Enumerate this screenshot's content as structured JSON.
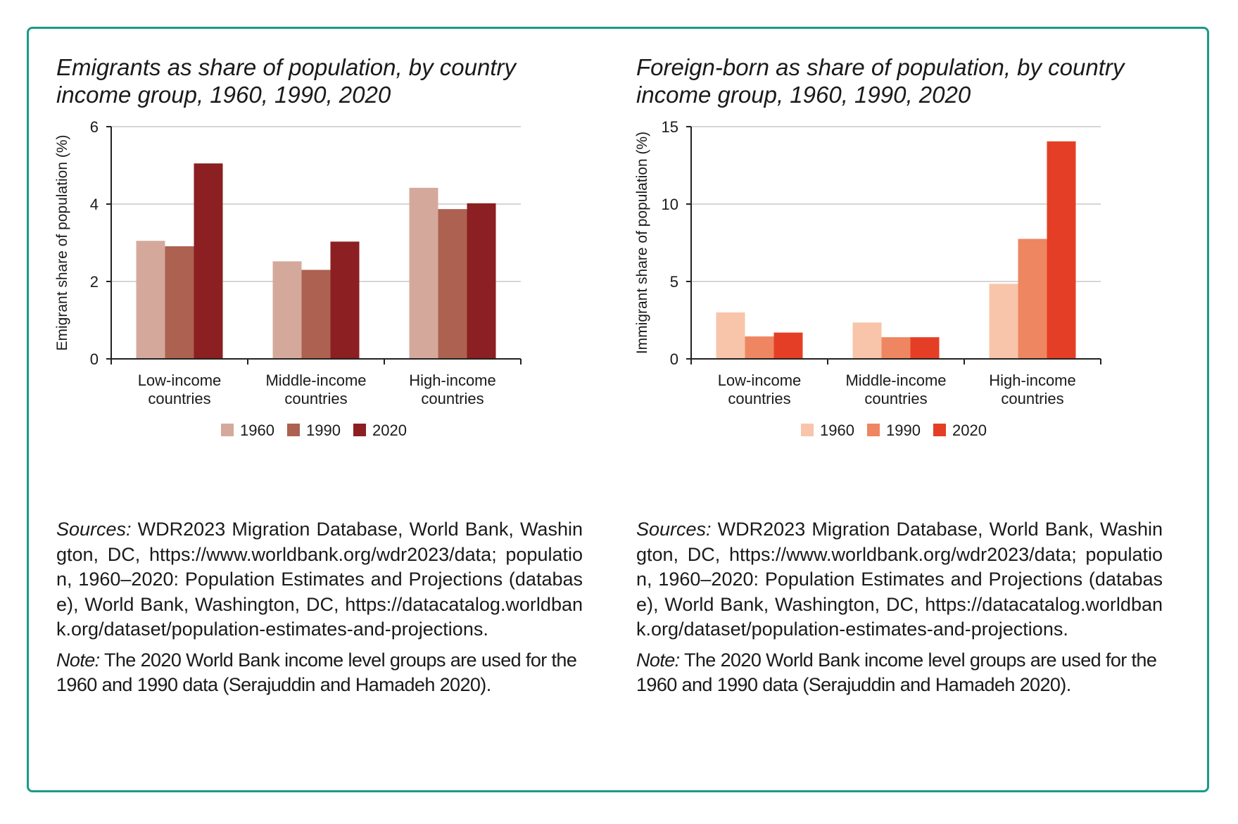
{
  "charts": [
    {
      "title": "Emigrants as share of population, by country income group, 1960, 1990, 2020",
      "sources_label": "Sources:",
      "sources_text": "WDR2023 Migration Database, World Bank, Washington, DC, https://www.worldbank.org/wdr2023/data; population, 1960–2020: Population Estimates and Projections (database), World Bank, Washington, DC, https://datacatalog.worldbank.org/dataset/population-estimates-and-projections.",
      "note_label": "Note:",
      "note_text": "The 2020 World Bank income level groups are used for the 1960 and 1990 data (Serajuddin and Hamadeh 2020).",
      "colors": [
        "#d4a99c",
        "#ad6150",
        "#8b1f21"
      ]
    },
    {
      "title": "Foreign-born as share of population, by country income group, 1960, 1990, 2020",
      "sources_label": "Sources:",
      "sources_text": "WDR2023 Migration Database, World Bank, Washington, DC, https://www.worldbank.org/wdr2023/data; population, 1960–2020: Population Estimates and Projections (database), World Bank, Washington, DC, https://datacatalog.worldbank.org/dataset/population-estimates-and-projections.",
      "note_label": "Note:",
      "note_text": "The 2020 World Bank income level groups are used for the 1960 and 1990 data (Serajuddin and Hamadeh 2020).",
      "colors": [
        "#f8c5aa",
        "#ee8661",
        "#e43f26"
      ]
    }
  ],
  "chart_data": [
    {
      "type": "bar",
      "title": "Emigrants as share of population, by country income group, 1960, 1990, 2020",
      "xlabel": "",
      "ylabel": "Emigrant share of population (%)",
      "categories": [
        [
          "Low-income",
          "countries"
        ],
        [
          "Middle-income",
          "countries"
        ],
        [
          "High-income",
          "countries"
        ]
      ],
      "series": [
        {
          "name": "1960",
          "values": [
            3.05,
            2.52,
            4.42
          ]
        },
        {
          "name": "1990",
          "values": [
            2.91,
            2.3,
            3.87
          ]
        },
        {
          "name": "2020",
          "values": [
            5.05,
            3.03,
            4.02
          ]
        }
      ],
      "ylim": [
        0,
        6
      ],
      "yticks": [
        0,
        2,
        4,
        6
      ],
      "grid": true,
      "legend": "bottom"
    },
    {
      "type": "bar",
      "title": "Foreign-born as share of population, by country income group, 1960, 1990, 2020",
      "xlabel": "",
      "ylabel": "Immigrant share of population (%)",
      "categories": [
        [
          "Low-income",
          "countries"
        ],
        [
          "Middle-income",
          "countries"
        ],
        [
          "High-income",
          "countries"
        ]
      ],
      "series": [
        {
          "name": "1960",
          "values": [
            3.0,
            2.35,
            4.85
          ]
        },
        {
          "name": "1990",
          "values": [
            1.45,
            1.4,
            7.75
          ]
        },
        {
          "name": "2020",
          "values": [
            1.7,
            1.4,
            14.05
          ]
        }
      ],
      "ylim": [
        0,
        15
      ],
      "yticks": [
        0,
        5,
        10,
        15
      ],
      "grid": true,
      "legend": "bottom"
    }
  ]
}
